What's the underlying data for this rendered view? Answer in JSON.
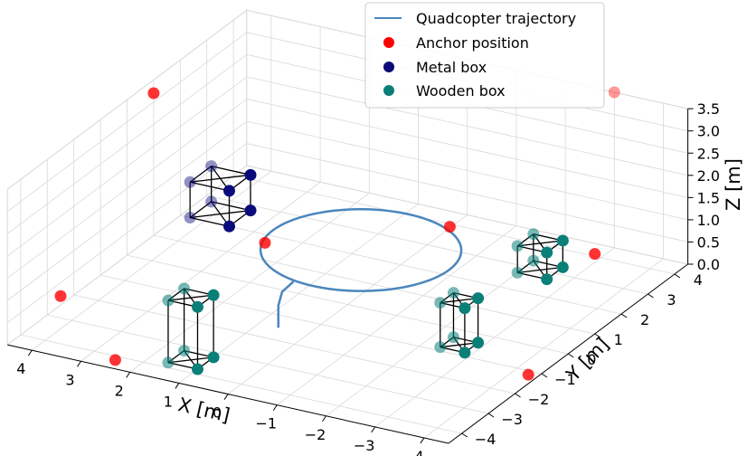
{
  "chart_data": {
    "type": "scatter",
    "projection": "3d",
    "xlabel": "X [m]",
    "ylabel": "Y [m]",
    "zlabel": "Z [m]",
    "xlim": [
      -4.5,
      4.5
    ],
    "ylim": [
      -4.5,
      4.5
    ],
    "zlim": [
      0,
      3.5
    ],
    "x_ticks": [
      "−4",
      "−3",
      "−2",
      "−1",
      "0",
      "1",
      "2",
      "3",
      "4"
    ],
    "y_ticks": [
      "−4",
      "−3",
      "−2",
      "−1",
      "0",
      "1",
      "2",
      "3",
      "4"
    ],
    "z_ticks": [
      "0.0",
      "0.5",
      "1.0",
      "1.5",
      "2.0",
      "2.5",
      "3.0",
      "3.5"
    ],
    "grid": true,
    "legend": {
      "position": "top-center",
      "entries": [
        "Quadcopter trajectory",
        "Anchor position",
        "Metal box",
        "Wooden box"
      ]
    },
    "colors": {
      "trajectory": "#4a86bd",
      "anchor": "#ff0000",
      "metal_box": "#0a0a7a",
      "wooden_box": "#0a7f78"
    },
    "series": [
      {
        "name": "Quadcopter trajectory",
        "kind": "line",
        "circle": {
          "center": [
            0,
            0.5
          ],
          "radius": 1.8,
          "z": 1.0
        },
        "path": [
          [
            0.6,
            -1.5,
            0.0
          ],
          [
            0.6,
            -1.5,
            0.5
          ],
          [
            0.55,
            -1.45,
            0.8
          ],
          [
            0.4,
            -1.3,
            1.0
          ]
        ]
      },
      {
        "name": "Anchor position",
        "kind": "points",
        "points": [
          [
            -4.5,
            -1.5,
            0.2
          ],
          [
            -4.5,
            1.0,
            1.8
          ],
          [
            -3.0,
            4.5,
            3.5
          ],
          [
            4.5,
            1.0,
            3.2
          ],
          [
            4.5,
            -2.5,
            0.2
          ],
          [
            2.3,
            -4.5,
            0.2
          ],
          [
            -1.0,
            2.0,
            1.1
          ],
          [
            2.5,
            1.5,
            0.1
          ]
        ]
      },
      {
        "name": "Metal box",
        "kind": "box",
        "center": [
          3.9,
          2.4
        ],
        "size": [
          0.8,
          0.8
        ],
        "z": [
          0,
          0.8
        ]
      },
      {
        "name": "Wooden box",
        "kind": "boxes",
        "boxes": [
          {
            "center": [
              -2.6,
              -0.6
            ],
            "size": [
              0.5,
              0.5
            ],
            "z": [
              0,
              1.0
            ]
          },
          {
            "center": [
              -2.3,
              3.0
            ],
            "size": [
              0.6,
              0.6
            ],
            "z": [
              0,
              0.6
            ]
          },
          {
            "center": [
              1.3,
              -3.5
            ],
            "size": [
              0.6,
              0.6
            ],
            "z": [
              0,
              1.4
            ]
          }
        ]
      }
    ]
  }
}
